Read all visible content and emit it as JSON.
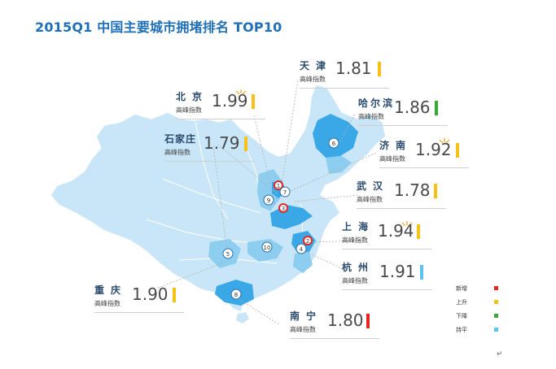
{
  "title": "2015Q1 中国主要城市拥堵排名 TOP10",
  "index_label": "高峰指数",
  "colors": {
    "new": "#e52521",
    "up": "#f5c11a",
    "down": "#3aa935",
    "flat": "#5bc3ec",
    "map_light": "#c8e6f7",
    "map_mid": "#8ccdf0",
    "map_dark": "#3aa8e6"
  },
  "cities": [
    {
      "name": "天津",
      "index": "1.81",
      "status": "up"
    },
    {
      "name": "北京",
      "index": "1.99",
      "status": "up"
    },
    {
      "name": "哈尔滨",
      "index": "1.86",
      "status": "down"
    },
    {
      "name": "石家庄",
      "index": "1.79",
      "status": "up"
    },
    {
      "name": "济南",
      "index": "1.92",
      "status": "up"
    },
    {
      "name": "武汉",
      "index": "1.78",
      "status": "up"
    },
    {
      "name": "上海",
      "index": "1.94",
      "status": "up"
    },
    {
      "name": "杭州",
      "index": "1.91",
      "status": "flat"
    },
    {
      "name": "重庆",
      "index": "1.90",
      "status": "up"
    },
    {
      "name": "南宁",
      "index": "1.80",
      "status": "new"
    }
  ],
  "pins": [
    "1",
    "2",
    "3",
    "4",
    "5",
    "6",
    "7",
    "8",
    "9",
    "10"
  ],
  "legend": [
    {
      "label": "新增",
      "status": "new"
    },
    {
      "label": "上升",
      "status": "up"
    },
    {
      "label": "下降",
      "status": "down"
    },
    {
      "label": "持平",
      "status": "flat"
    }
  ],
  "return_mark": "↵"
}
